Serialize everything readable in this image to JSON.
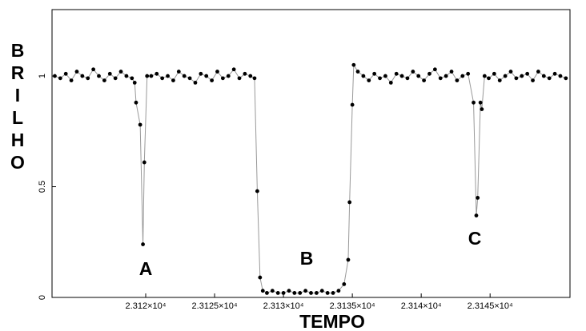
{
  "chart_data": {
    "type": "line",
    "y_label": "BRILHO",
    "x_label": "TEMPO",
    "annotations": [
      "A",
      "B",
      "C"
    ],
    "color": "#000000",
    "line_color": "#999999",
    "markers": true,
    "xlim": [
      23113.2,
      23150.8
    ],
    "xticks": [
      {
        "value": 23120,
        "label": "2.312×10⁴"
      },
      {
        "value": 23125,
        "label": "2.3125×10⁴"
      },
      {
        "value": 23130,
        "label": "2.313×10⁴"
      },
      {
        "value": 23135,
        "label": "2.3135×10⁴"
      },
      {
        "value": 23140,
        "label": "2.314×10⁴"
      },
      {
        "value": 23145,
        "label": "2.3145×10⁴"
      }
    ],
    "ylim": [
      0,
      1.3
    ],
    "yticks": [
      0,
      0.5,
      1
    ],
    "x": [
      23113.4,
      23113.8,
      23114.2,
      23114.6,
      23115.0,
      23115.4,
      23115.8,
      23116.2,
      23116.6,
      23117.0,
      23117.4,
      23117.8,
      23118.2,
      23118.6,
      23119.0,
      23119.2,
      23119.3,
      23119.6,
      23119.8,
      23119.9,
      23120.1,
      23120.4,
      23120.8,
      23121.2,
      23121.6,
      23122.0,
      23122.4,
      23122.8,
      23123.2,
      23123.6,
      23124.0,
      23124.4,
      23124.8,
      23125.2,
      23125.6,
      23126.0,
      23126.4,
      23126.8,
      23127.2,
      23127.6,
      23127.9,
      23128.1,
      23128.3,
      23128.5,
      23128.8,
      23129.2,
      23129.6,
      23130.0,
      23130.4,
      23130.8,
      23131.2,
      23131.6,
      23132.0,
      23132.4,
      23132.8,
      23133.2,
      23133.6,
      23134.0,
      23134.4,
      23134.7,
      23134.8,
      23135.0,
      23135.1,
      23135.4,
      23135.8,
      23136.2,
      23136.6,
      23137.0,
      23137.4,
      23137.8,
      23138.2,
      23138.6,
      23139.0,
      23139.4,
      23139.8,
      23140.2,
      23140.6,
      23141.0,
      23141.4,
      23141.8,
      23142.2,
      23142.6,
      23143.0,
      23143.4,
      23143.8,
      23144.0,
      23144.1,
      23144.3,
      23144.4,
      23144.6,
      23144.9,
      23145.3,
      23145.7,
      23146.1,
      23146.5,
      23146.9,
      23147.3,
      23147.7,
      23148.1,
      23148.5,
      23148.9,
      23149.3,
      23149.7,
      23150.1,
      23150.5
    ],
    "values": [
      1.0,
      0.99,
      1.01,
      0.98,
      1.02,
      1.0,
      0.99,
      1.03,
      1.0,
      0.98,
      1.01,
      0.99,
      1.02,
      1.0,
      0.99,
      0.97,
      0.88,
      0.78,
      0.24,
      0.61,
      1.0,
      1.0,
      1.01,
      0.99,
      1.0,
      0.98,
      1.02,
      1.0,
      0.99,
      0.97,
      1.01,
      1.0,
      0.98,
      1.02,
      0.99,
      1.0,
      1.03,
      0.99,
      1.01,
      1.0,
      0.99,
      0.48,
      0.09,
      0.03,
      0.02,
      0.03,
      0.02,
      0.02,
      0.03,
      0.02,
      0.02,
      0.03,
      0.02,
      0.02,
      0.03,
      0.02,
      0.02,
      0.03,
      0.06,
      0.17,
      0.43,
      0.87,
      1.05,
      1.02,
      1.0,
      0.98,
      1.01,
      0.99,
      1.0,
      0.97,
      1.01,
      1.0,
      0.99,
      1.02,
      1.0,
      0.98,
      1.01,
      1.03,
      0.99,
      1.0,
      1.02,
      0.98,
      1.0,
      1.01,
      0.88,
      0.37,
      0.45,
      0.88,
      0.85,
      1.0,
      0.99,
      1.01,
      0.98,
      1.0,
      1.02,
      0.99,
      1.0,
      1.01,
      0.98,
      1.02,
      1.0,
      0.99,
      1.01,
      1.0,
      0.99
    ]
  }
}
